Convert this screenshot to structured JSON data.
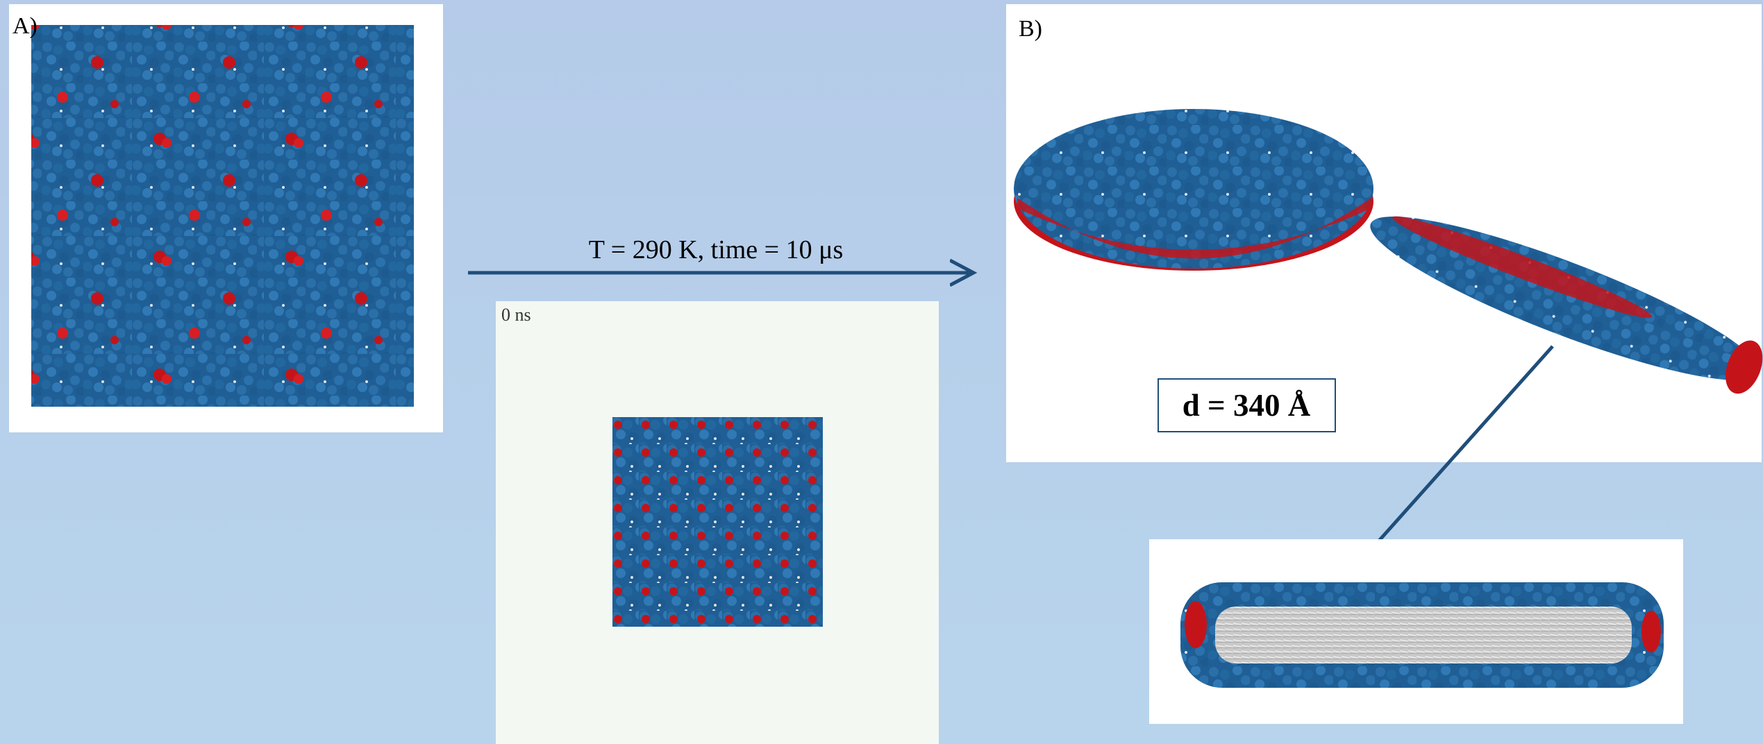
{
  "panel_a": {
    "label": "A)"
  },
  "transition": {
    "label": "T = 290 K, time = 10 μs"
  },
  "snapshot": {
    "time_label": "0 ns"
  },
  "panel_b": {
    "label": "B)",
    "diameter_label": "d = 340 Å"
  }
}
